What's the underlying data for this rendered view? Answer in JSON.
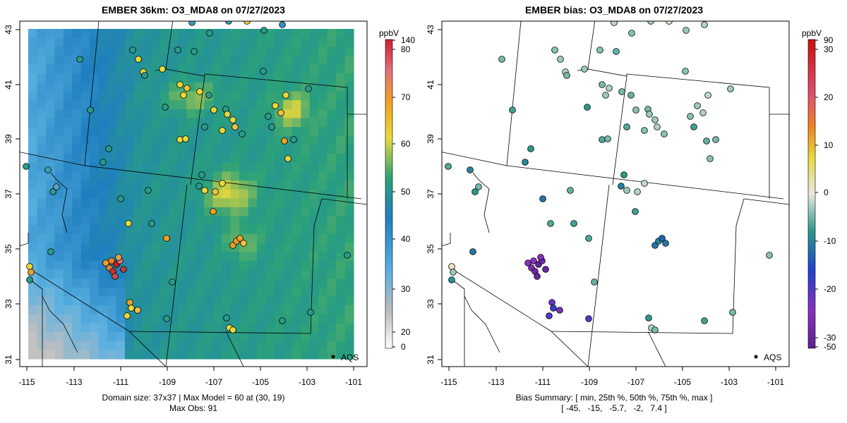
{
  "left_panel": {
    "title": "EMBER 36km: O3_MDA8 on 07/27/2023",
    "x_ticks": [
      "-115",
      "-113",
      "-111",
      "-109",
      "-107",
      "-105",
      "-103",
      "-101"
    ],
    "y_ticks": [
      "31",
      "33",
      "35",
      "37",
      "39",
      "41",
      "43"
    ],
    "footer_line1": "Domain size: 37x37 | Max Model = 60 at (30, 19)",
    "footer_line2": "Max Obs: 91",
    "legend_label": "AQS",
    "colorbar": {
      "unit": "ppbV",
      "ticks": [
        "0",
        "20",
        "30",
        "40",
        "50",
        "60",
        "70",
        "80",
        "140"
      ],
      "range": [
        0,
        140
      ]
    }
  },
  "right_panel": {
    "title": "EMBER bias: O3_MDA8 on 07/27/2023",
    "x_ticks": [
      "-115",
      "-113",
      "-111",
      "-109",
      "-107",
      "-105",
      "-103",
      "-101"
    ],
    "y_ticks": [
      "31",
      "33",
      "35",
      "37",
      "39",
      "41",
      "43"
    ],
    "footer_line1": "Bias Summary: [ min, 25th %, 50th %, 75th %, max ]",
    "footer_line2": "[ -45,   -15,   -5.7,   -2,   7.4 ]",
    "legend_label": "AQS",
    "colorbar": {
      "unit": "ppbV",
      "ticks": [
        "-50",
        "-30",
        "-20",
        "-10",
        "0",
        "10",
        "20",
        "30",
        "90"
      ],
      "range": [
        -50,
        90
      ]
    }
  },
  "colors": {
    "model_low": "#4aa3e0",
    "model_mid": "#2a9a8a",
    "model_high": "#e6d23c",
    "bias_negative": "#6a2aa0",
    "bias_zero": "#e8e8e0",
    "bias_positive": "#cc2020"
  },
  "region": "Western US: AZ, NM, UT, CO, WY"
}
